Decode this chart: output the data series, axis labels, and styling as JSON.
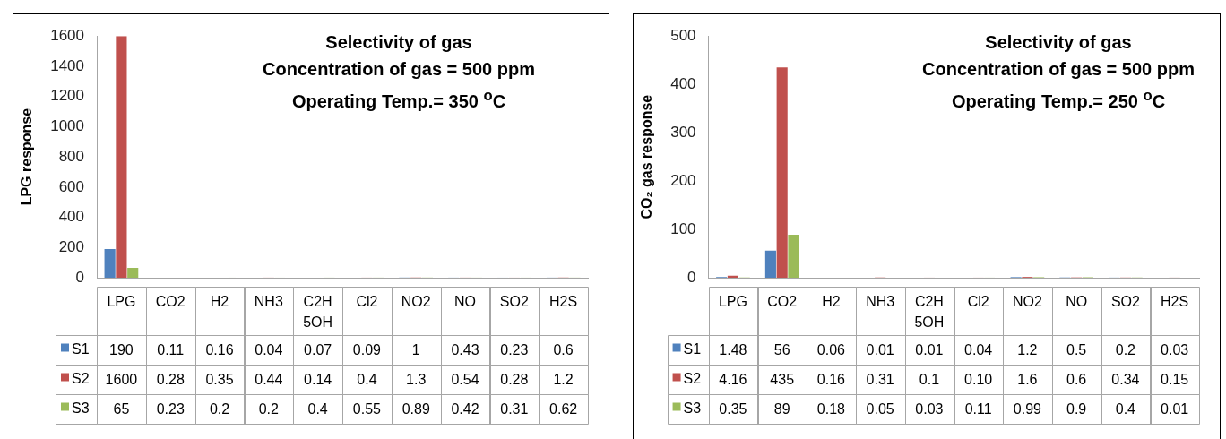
{
  "chart_data": [
    {
      "type": "bar",
      "title": "Selectivity of gas",
      "subtitle": "Concentration of gas = 500 ppm",
      "annotations": [
        "Operating Temp.= 350 $^{o}$C"
      ],
      "ylabel": "LPG response",
      "categories": [
        "LPG",
        "CO2",
        "H2",
        "NH3",
        "C2H5OH",
        "Cl2",
        "NO2",
        "NO",
        "SO2",
        "H2S"
      ],
      "series": [
        {
          "name": "S1",
          "color": "#4f81bd",
          "values": [
            190,
            0.11,
            0.16,
            0.04,
            0.07,
            0.09,
            1,
            0.43,
            0.23,
            0.6
          ]
        },
        {
          "name": "S2",
          "color": "#c0504d",
          "values": [
            1600,
            0.28,
            0.35,
            0.44,
            0.14,
            0.4,
            1.3,
            0.54,
            0.28,
            1.2
          ]
        },
        {
          "name": "S3",
          "color": "#9bbb59",
          "values": [
            65,
            0.23,
            0.2,
            0.2,
            0.4,
            0.55,
            0.89,
            0.42,
            0.31,
            0.62
          ]
        }
      ],
      "ylim": [
        0,
        1600
      ],
      "yticks": [
        0,
        200,
        400,
        600,
        800,
        1000,
        1200,
        1400,
        1600
      ],
      "data_labels": true,
      "legend": "bottom"
    },
    {
      "type": "bar",
      "title": "Selectivity of gas",
      "subtitle": "Concentration of gas = 500 ppm",
      "annotations": [
        "Operating Temp.= 250 $^{o}$C"
      ],
      "ylabel": "CO₂ gas response",
      "categories": [
        "LPG",
        "CO2",
        "H2",
        "NH3",
        "C2H5OH",
        "Cl2",
        "NO2",
        "NO",
        "SO2",
        "H2S"
      ],
      "series": [
        {
          "name": "S1",
          "color": "#4f81bd",
          "values": [
            1.48,
            56,
            0.06,
            0.01,
            0.01,
            0.04,
            1.2,
            0.5,
            0.2,
            0.03
          ],
          "value_labels": [
            "1.48",
            "56",
            "0.06",
            "0.01",
            "0.01",
            "0.04",
            "1.2",
            "0.5",
            "0.2",
            "0.03"
          ]
        },
        {
          "name": "S2",
          "color": "#c0504d",
          "values": [
            4.16,
            435,
            0.16,
            0.31,
            0.1,
            0.1,
            1.6,
            0.6,
            0.34,
            0.15
          ],
          "value_labels": [
            "4.16",
            "435",
            "0.16",
            "0.31",
            "0.1",
            "0.10",
            "1.6",
            "0.6",
            "0.34",
            "0.15"
          ]
        },
        {
          "name": "S3",
          "color": "#9bbb59",
          "values": [
            0.35,
            89,
            0.18,
            0.05,
            0.03,
            0.11,
            0.99,
            0.9,
            0.4,
            0.01
          ],
          "value_labels": [
            "0.35",
            "89",
            "0.18",
            "0.05",
            "0.03",
            "0.11",
            "0.99",
            "0.9",
            "0.4",
            "0.01"
          ]
        }
      ],
      "ylim": [
        0,
        500
      ],
      "yticks": [
        0,
        100,
        200,
        300,
        400,
        500
      ],
      "legend": "bottom"
    }
  ]
}
